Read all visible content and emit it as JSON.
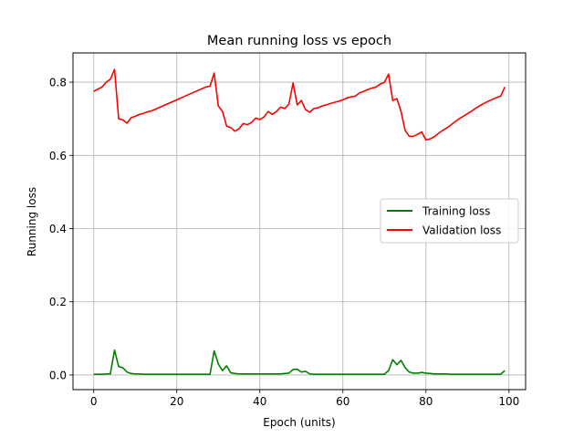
{
  "chart_data": {
    "type": "line",
    "title": "Mean running loss vs epoch",
    "xlabel": "Epoch (units)",
    "ylabel": "Running loss",
    "xlim": [
      -5,
      104
    ],
    "ylim": [
      -0.04,
      0.88
    ],
    "xticks": [
      0,
      20,
      40,
      60,
      80,
      100
    ],
    "yticks": [
      0.0,
      0.2,
      0.4,
      0.6,
      0.8
    ],
    "xtick_labels": [
      "0",
      "20",
      "40",
      "60",
      "80",
      "100"
    ],
    "ytick_labels": [
      "0.0",
      "0.2",
      "0.4",
      "0.6",
      "0.8"
    ],
    "grid": true,
    "legend_position": "center-right",
    "series": [
      {
        "name": "Training loss",
        "color": "#008000",
        "x": [
          0,
          1,
          2,
          3,
          4,
          5,
          6,
          7,
          8,
          9,
          10,
          11,
          12,
          13,
          14,
          15,
          16,
          17,
          18,
          19,
          20,
          21,
          22,
          23,
          24,
          25,
          26,
          27,
          28,
          29,
          30,
          31,
          32,
          33,
          34,
          35,
          36,
          37,
          38,
          39,
          40,
          41,
          42,
          43,
          44,
          45,
          46,
          47,
          48,
          49,
          50,
          51,
          52,
          53,
          54,
          55,
          56,
          57,
          58,
          59,
          60,
          61,
          62,
          63,
          64,
          65,
          66,
          67,
          68,
          69,
          70,
          71,
          72,
          73,
          74,
          75,
          76,
          77,
          78,
          79,
          80,
          81,
          82,
          83,
          84,
          85,
          86,
          87,
          88,
          89,
          90,
          91,
          92,
          93,
          94,
          95,
          96,
          97,
          98,
          99
        ],
        "values": [
          0.002,
          0.002,
          0.002,
          0.003,
          0.003,
          0.068,
          0.023,
          0.02,
          0.008,
          0.004,
          0.003,
          0.003,
          0.002,
          0.002,
          0.002,
          0.002,
          0.002,
          0.002,
          0.002,
          0.002,
          0.002,
          0.002,
          0.002,
          0.002,
          0.002,
          0.002,
          0.002,
          0.002,
          0.002,
          0.066,
          0.03,
          0.012,
          0.025,
          0.006,
          0.004,
          0.003,
          0.003,
          0.003,
          0.003,
          0.003,
          0.003,
          0.003,
          0.003,
          0.003,
          0.003,
          0.003,
          0.004,
          0.005,
          0.015,
          0.016,
          0.008,
          0.01,
          0.003,
          0.002,
          0.002,
          0.002,
          0.002,
          0.002,
          0.002,
          0.002,
          0.002,
          0.002,
          0.002,
          0.002,
          0.002,
          0.002,
          0.002,
          0.002,
          0.002,
          0.002,
          0.002,
          0.012,
          0.042,
          0.028,
          0.04,
          0.02,
          0.008,
          0.005,
          0.005,
          0.007,
          0.005,
          0.004,
          0.003,
          0.003,
          0.003,
          0.003,
          0.002,
          0.002,
          0.002,
          0.002,
          0.002,
          0.002,
          0.002,
          0.002,
          0.002,
          0.002,
          0.002,
          0.002,
          0.002,
          0.012
        ]
      },
      {
        "name": "Validation loss",
        "color": "#ff0000",
        "x": [
          0,
          1,
          2,
          3,
          4,
          5,
          6,
          7,
          8,
          9,
          10,
          11,
          12,
          13,
          14,
          15,
          16,
          17,
          18,
          19,
          20,
          21,
          22,
          23,
          24,
          25,
          26,
          27,
          28,
          29,
          30,
          31,
          32,
          33,
          34,
          35,
          36,
          37,
          38,
          39,
          40,
          41,
          42,
          43,
          44,
          45,
          46,
          47,
          48,
          49,
          50,
          51,
          52,
          53,
          54,
          55,
          56,
          57,
          58,
          59,
          60,
          61,
          62,
          63,
          64,
          65,
          66,
          67,
          68,
          69,
          70,
          71,
          72,
          73,
          74,
          75,
          76,
          77,
          78,
          79,
          80,
          81,
          82,
          83,
          84,
          85,
          86,
          87,
          88,
          89,
          90,
          91,
          92,
          93,
          94,
          95,
          96,
          97,
          98,
          99
        ],
        "values": [
          0.775,
          0.781,
          0.787,
          0.8,
          0.808,
          0.835,
          0.7,
          0.697,
          0.688,
          0.703,
          0.707,
          0.712,
          0.715,
          0.719,
          0.722,
          0.727,
          0.732,
          0.737,
          0.742,
          0.747,
          0.752,
          0.757,
          0.762,
          0.767,
          0.772,
          0.777,
          0.782,
          0.787,
          0.789,
          0.825,
          0.735,
          0.72,
          0.68,
          0.676,
          0.666,
          0.673,
          0.687,
          0.684,
          0.69,
          0.702,
          0.698,
          0.705,
          0.72,
          0.712,
          0.72,
          0.732,
          0.728,
          0.74,
          0.798,
          0.738,
          0.75,
          0.725,
          0.718,
          0.728,
          0.73,
          0.735,
          0.738,
          0.742,
          0.745,
          0.748,
          0.752,
          0.757,
          0.76,
          0.762,
          0.771,
          0.775,
          0.78,
          0.784,
          0.787,
          0.795,
          0.8,
          0.822,
          0.75,
          0.755,
          0.72,
          0.668,
          0.652,
          0.652,
          0.658,
          0.664,
          0.642,
          0.645,
          0.651,
          0.66,
          0.668,
          0.675,
          0.683,
          0.692,
          0.7,
          0.707,
          0.714,
          0.721,
          0.729,
          0.736,
          0.742,
          0.748,
          0.753,
          0.758,
          0.762,
          0.787
        ]
      }
    ]
  }
}
